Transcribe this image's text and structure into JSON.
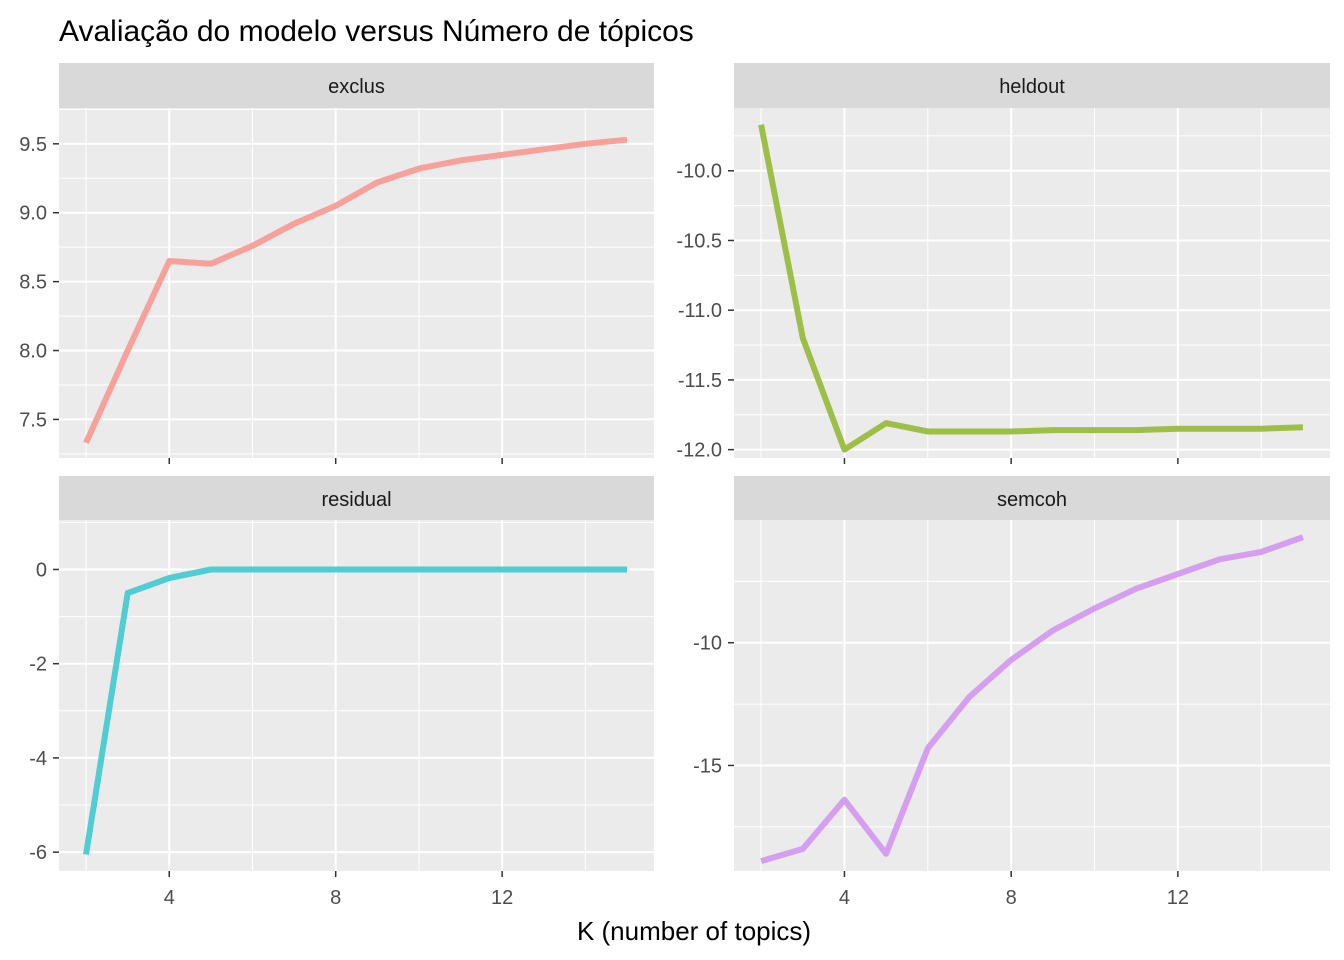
{
  "chart_data": {
    "type": "line",
    "title": "Avaliação do modelo versus Número de tópicos",
    "xlabel": "K (number of topics)",
    "ylabel": "",
    "grid": true,
    "x": [
      2,
      3,
      4,
      5,
      6,
      7,
      8,
      9,
      10,
      11,
      12,
      13,
      14,
      15
    ],
    "x_ticks": [
      4,
      8,
      12
    ],
    "xlim": [
      1.35,
      15.65
    ],
    "panels": [
      {
        "name": "exclus",
        "color": "#F8A09A",
        "values": [
          7.33,
          8.0,
          8.65,
          8.63,
          8.76,
          8.92,
          9.05,
          9.22,
          9.32,
          9.38,
          9.42,
          9.46,
          9.5,
          9.53
        ],
        "ylim": [
          7.22,
          9.76
        ],
        "y_ticks": [
          7.5,
          8.0,
          8.5,
          9.0,
          9.5
        ],
        "y_tick_labels": [
          "7.5",
          "8.0",
          "8.5",
          "9.0",
          "9.5"
        ]
      },
      {
        "name": "heldout",
        "color": "#9DBF48",
        "values": [
          -9.67,
          -11.2,
          -12.0,
          -11.81,
          -11.87,
          -11.87,
          -11.87,
          -11.86,
          -11.86,
          -11.86,
          -11.85,
          -11.85,
          -11.85,
          -11.84
        ],
        "ylim": [
          -12.06,
          -9.55
        ],
        "y_ticks": [
          -12.0,
          -11.5,
          -11.0,
          -10.5,
          -10.0
        ],
        "y_tick_labels": [
          "-12.0",
          "-11.5",
          "-11.0",
          "-10.5",
          "-10.0"
        ]
      },
      {
        "name": "residual",
        "color": "#4FCDD2",
        "values": [
          -6.05,
          -0.5,
          -0.18,
          0.0,
          0.0,
          0.0,
          0.0,
          0.0,
          0.0,
          0.0,
          0.0,
          0.0,
          0.0,
          0.0
        ],
        "ylim": [
          -6.4,
          1.05
        ],
        "y_ticks": [
          -6,
          -4,
          -2,
          0
        ],
        "y_tick_labels": [
          "-6",
          "-4",
          "-2",
          "0"
        ]
      },
      {
        "name": "semcoh",
        "color": "#D59EF0",
        "values": [
          -18.9,
          -18.4,
          -16.4,
          -18.6,
          -14.3,
          -12.2,
          -10.7,
          -9.5,
          -8.6,
          -7.8,
          -7.2,
          -6.6,
          -6.3,
          -5.7
        ],
        "ylim": [
          -19.3,
          -5.0
        ],
        "y_ticks": [
          -15,
          -10
        ],
        "y_tick_labels": [
          "-15",
          "-10"
        ]
      }
    ]
  }
}
